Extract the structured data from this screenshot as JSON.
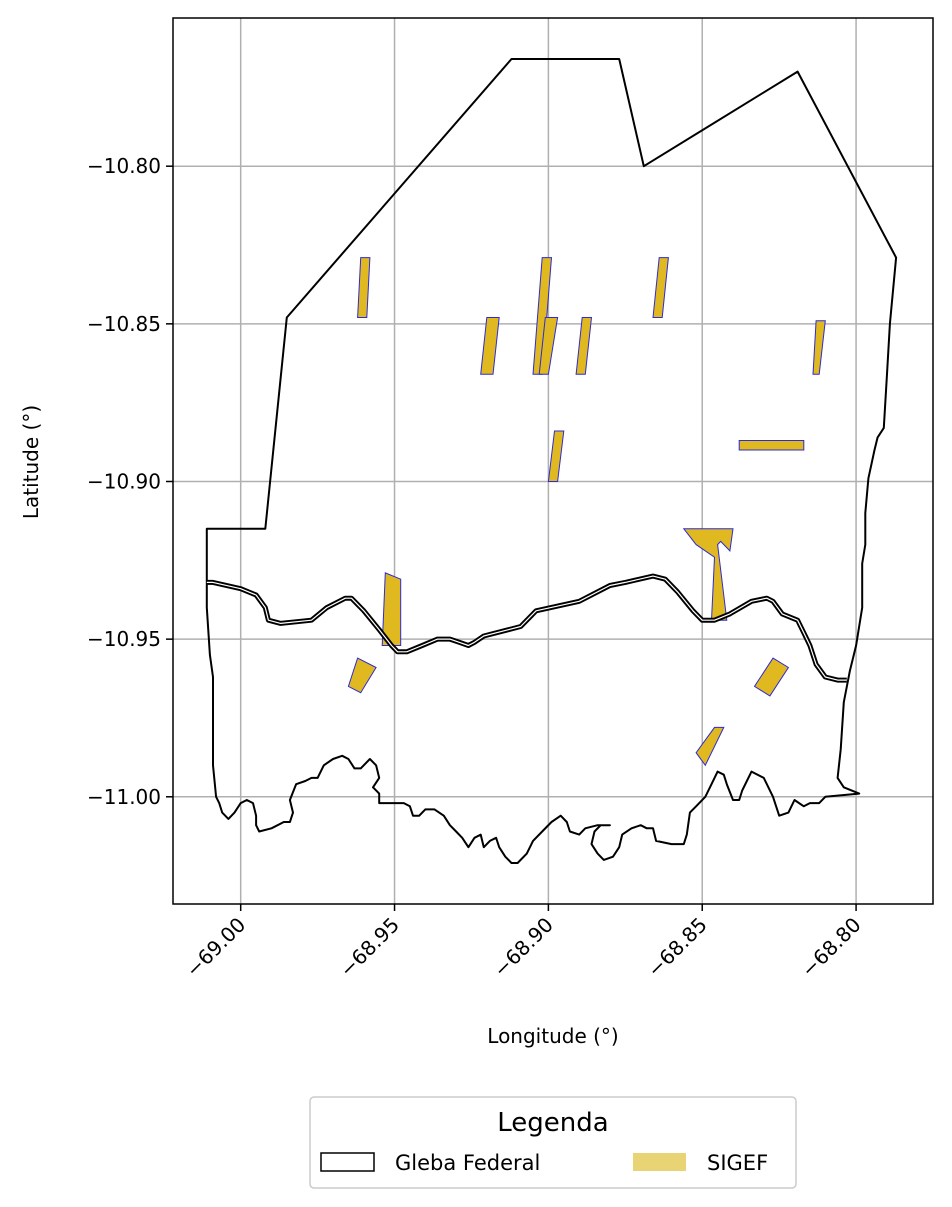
{
  "chart_data": {
    "type": "map",
    "xlabel": "Longitude (°)",
    "ylabel": "Latitude (°)",
    "xlim": [
      -69.022,
      -68.775
    ],
    "ylim": [
      -11.034,
      -10.753
    ],
    "grid": true,
    "x_ticks": [
      {
        "value": -69.0,
        "label": "−69.00"
      },
      {
        "value": -68.95,
        "label": "−68.95"
      },
      {
        "value": -68.9,
        "label": "−68.90"
      },
      {
        "value": -68.85,
        "label": "−68.85"
      },
      {
        "value": -68.8,
        "label": "−68.80"
      }
    ],
    "y_ticks": [
      {
        "value": -10.8,
        "label": "−10.80"
      },
      {
        "value": -10.85,
        "label": "−10.85"
      },
      {
        "value": -10.9,
        "label": "−10.90"
      },
      {
        "value": -10.95,
        "label": "−10.95"
      },
      {
        "value": -11.0,
        "label": "−11.00"
      }
    ],
    "legend": {
      "title": "Legenda",
      "placement": "bottom-center",
      "entries": [
        {
          "label": "Gleba Federal",
          "style": "outline",
          "color": "#000000"
        },
        {
          "label": "SIGEF",
          "style": "fill",
          "color": "#e8d474"
        }
      ]
    },
    "colors": {
      "gleba_stroke": "#000000",
      "sigef_fill": "#e0b820",
      "sigef_stroke": "#2b2bd9",
      "grid": "#b0b0b0"
    },
    "gleba_polygons": [
      {
        "name": "Gleba Federal",
        "coords": [
          [
            -69.011,
            -10.915
          ],
          [
            -68.992,
            -10.915
          ],
          [
            -68.985,
            -10.848
          ],
          [
            -68.912,
            -10.766
          ],
          [
            -68.877,
            -10.766
          ],
          [
            -68.869,
            -10.8
          ],
          [
            -68.819,
            -10.77
          ],
          [
            -68.787,
            -10.829
          ],
          [
            -68.789,
            -10.85
          ],
          [
            -68.79,
            -10.867
          ],
          [
            -68.791,
            -10.883
          ],
          [
            -68.793,
            -10.886
          ],
          [
            -68.794,
            -10.89
          ],
          [
            -68.796,
            -10.899
          ],
          [
            -68.797,
            -10.91
          ],
          [
            -68.797,
            -10.92
          ],
          [
            -68.798,
            -10.926
          ],
          [
            -68.798,
            -10.94
          ],
          [
            -68.8,
            -10.952
          ],
          [
            -68.802,
            -10.96
          ],
          [
            -68.804,
            -10.97
          ],
          [
            -68.805,
            -10.985
          ],
          [
            -68.806,
            -10.994
          ],
          [
            -68.804,
            -10.997
          ],
          [
            -68.799,
            -10.999
          ],
          [
            -68.81,
            -11.0
          ],
          [
            -68.812,
            -11.002
          ],
          [
            -68.815,
            -11.002
          ],
          [
            -68.817,
            -11.003
          ],
          [
            -68.82,
            -11.001
          ],
          [
            -68.822,
            -11.005
          ],
          [
            -68.825,
            -11.006
          ],
          [
            -68.827,
            -11.0
          ],
          [
            -68.83,
            -10.994
          ],
          [
            -68.834,
            -10.992
          ],
          [
            -68.837,
            -10.998
          ],
          [
            -68.838,
            -11.001
          ],
          [
            -68.84,
            -11.001
          ],
          [
            -68.842,
            -10.996
          ],
          [
            -68.843,
            -10.993
          ],
          [
            -68.845,
            -10.992
          ],
          [
            -68.847,
            -10.996
          ],
          [
            -68.849,
            -11.0
          ],
          [
            -68.852,
            -11.003
          ],
          [
            -68.854,
            -11.005
          ],
          [
            -68.855,
            -11.012
          ],
          [
            -68.856,
            -11.015
          ],
          [
            -68.86,
            -11.015
          ],
          [
            -68.865,
            -11.014
          ],
          [
            -68.866,
            -11.01
          ],
          [
            -68.868,
            -11.01
          ],
          [
            -68.87,
            -11.009
          ],
          [
            -68.873,
            -11.01
          ],
          [
            -68.876,
            -11.012
          ],
          [
            -68.877,
            -11.016
          ],
          [
            -68.879,
            -11.019
          ],
          [
            -68.882,
            -11.02
          ],
          [
            -68.884,
            -11.018
          ],
          [
            -68.886,
            -11.015
          ],
          [
            -68.885,
            -11.011
          ],
          [
            -68.883,
            -11.009
          ],
          [
            -68.88,
            -11.009
          ],
          [
            -68.884,
            -11.009
          ],
          [
            -68.888,
            -11.01
          ],
          [
            -68.89,
            -11.012
          ],
          [
            -68.893,
            -11.011
          ],
          [
            -68.894,
            -11.008
          ],
          [
            -68.896,
            -11.006
          ],
          [
            -68.899,
            -11.008
          ],
          [
            -68.902,
            -11.011
          ],
          [
            -68.905,
            -11.014
          ],
          [
            -68.907,
            -11.018
          ],
          [
            -68.91,
            -11.021
          ],
          [
            -68.912,
            -11.021
          ],
          [
            -68.914,
            -11.019
          ],
          [
            -68.916,
            -11.016
          ],
          [
            -68.917,
            -11.013
          ],
          [
            -68.919,
            -11.014
          ],
          [
            -68.921,
            -11.016
          ],
          [
            -68.922,
            -11.012
          ],
          [
            -68.924,
            -11.013
          ],
          [
            -68.926,
            -11.016
          ],
          [
            -68.928,
            -11.013
          ],
          [
            -68.93,
            -11.011
          ],
          [
            -68.932,
            -11.009
          ],
          [
            -68.934,
            -11.006
          ],
          [
            -68.937,
            -11.004
          ],
          [
            -68.94,
            -11.004
          ],
          [
            -68.942,
            -11.006
          ],
          [
            -68.944,
            -11.006
          ],
          [
            -68.945,
            -11.003
          ],
          [
            -68.947,
            -11.002
          ],
          [
            -68.95,
            -11.002
          ],
          [
            -68.953,
            -11.002
          ],
          [
            -68.955,
            -11.002
          ],
          [
            -68.955,
            -10.999
          ],
          [
            -68.957,
            -10.997
          ],
          [
            -68.955,
            -10.994
          ],
          [
            -68.956,
            -10.99
          ],
          [
            -68.958,
            -10.988
          ],
          [
            -68.961,
            -10.991
          ],
          [
            -68.963,
            -10.991
          ],
          [
            -68.965,
            -10.988
          ],
          [
            -68.967,
            -10.987
          ],
          [
            -68.97,
            -10.988
          ],
          [
            -68.973,
            -10.99
          ],
          [
            -68.975,
            -10.994
          ],
          [
            -68.977,
            -10.994
          ],
          [
            -68.979,
            -10.995
          ],
          [
            -68.982,
            -10.996
          ],
          [
            -68.984,
            -11.001
          ],
          [
            -68.983,
            -11.005
          ],
          [
            -68.984,
            -11.008
          ],
          [
            -68.986,
            -11.008
          ],
          [
            -68.99,
            -11.01
          ],
          [
            -68.994,
            -11.011
          ],
          [
            -68.995,
            -11.009
          ],
          [
            -68.995,
            -11.006
          ],
          [
            -68.996,
            -11.002
          ],
          [
            -68.998,
            -11.001
          ],
          [
            -69.0,
            -11.002
          ],
          [
            -69.002,
            -11.005
          ],
          [
            -69.004,
            -11.007
          ],
          [
            -69.006,
            -11.005
          ],
          [
            -69.007,
            -11.002
          ],
          [
            -69.008,
            -11.0
          ],
          [
            -69.009,
            -10.99
          ],
          [
            -69.009,
            -10.976
          ],
          [
            -69.009,
            -10.965
          ],
          [
            -69.009,
            -10.962
          ],
          [
            -69.01,
            -10.955
          ],
          [
            -69.011,
            -10.94
          ],
          [
            -69.011,
            -10.925
          ]
        ],
        "closed": true
      }
    ],
    "gleba_lines": [
      {
        "name": "Gleba Federal",
        "double": true,
        "coords": [
          [
            -69.011,
            -10.932
          ],
          [
            -69.009,
            -10.932
          ],
          [
            -69.0,
            -10.934
          ],
          [
            -68.995,
            -10.936
          ],
          [
            -68.992,
            -10.94
          ],
          [
            -68.991,
            -10.944
          ],
          [
            -68.987,
            -10.945
          ],
          [
            -68.977,
            -10.944
          ],
          [
            -68.972,
            -10.94
          ],
          [
            -68.966,
            -10.937
          ],
          [
            -68.964,
            -10.937
          ],
          [
            -68.96,
            -10.941
          ],
          [
            -68.955,
            -10.947
          ],
          [
            -68.951,
            -10.952
          ],
          [
            -68.949,
            -10.954
          ],
          [
            -68.946,
            -10.954
          ],
          [
            -68.941,
            -10.952
          ],
          [
            -68.936,
            -10.95
          ],
          [
            -68.932,
            -10.95
          ],
          [
            -68.929,
            -10.951
          ],
          [
            -68.926,
            -10.952
          ],
          [
            -68.924,
            -10.951
          ],
          [
            -68.921,
            -10.949
          ],
          [
            -68.913,
            -10.947
          ],
          [
            -68.909,
            -10.946
          ],
          [
            -68.906,
            -10.943
          ],
          [
            -68.904,
            -10.941
          ],
          [
            -68.89,
            -10.938
          ],
          [
            -68.88,
            -10.933
          ],
          [
            -68.875,
            -10.932
          ],
          [
            -68.866,
            -10.93
          ],
          [
            -68.862,
            -10.931
          ],
          [
            -68.858,
            -10.935
          ],
          [
            -68.853,
            -10.941
          ],
          [
            -68.85,
            -10.944
          ],
          [
            -68.846,
            -10.944
          ],
          [
            -68.841,
            -10.942
          ],
          [
            -68.834,
            -10.938
          ],
          [
            -68.829,
            -10.937
          ],
          [
            -68.827,
            -10.938
          ],
          [
            -68.824,
            -10.942
          ],
          [
            -68.819,
            -10.944
          ],
          [
            -68.817,
            -10.948
          ],
          [
            -68.815,
            -10.952
          ],
          [
            -68.813,
            -10.958
          ],
          [
            -68.81,
            -10.962
          ],
          [
            -68.806,
            -10.963
          ],
          [
            -68.803,
            -10.963
          ]
        ],
        "closed": false
      }
    ],
    "sigef_parcels": [
      [
        [
          -68.961,
          -10.829
        ],
        [
          -68.958,
          -10.829
        ],
        [
          -68.959,
          -10.848
        ],
        [
          -68.962,
          -10.848
        ]
      ],
      [
        [
          -68.902,
          -10.829
        ],
        [
          -68.899,
          -10.829
        ],
        [
          -68.902,
          -10.866
        ],
        [
          -68.905,
          -10.866
        ]
      ],
      [
        [
          -68.864,
          -10.829
        ],
        [
          -68.861,
          -10.829
        ],
        [
          -68.863,
          -10.848
        ],
        [
          -68.866,
          -10.848
        ]
      ],
      [
        [
          -68.92,
          -10.848
        ],
        [
          -68.916,
          -10.848
        ],
        [
          -68.918,
          -10.866
        ],
        [
          -68.922,
          -10.866
        ]
      ],
      [
        [
          -68.901,
          -10.848
        ],
        [
          -68.897,
          -10.848
        ],
        [
          -68.9,
          -10.866
        ],
        [
          -68.903,
          -10.866
        ]
      ],
      [
        [
          -68.889,
          -10.848
        ],
        [
          -68.886,
          -10.848
        ],
        [
          -68.888,
          -10.866
        ],
        [
          -68.891,
          -10.866
        ]
      ],
      [
        [
          -68.813,
          -10.849
        ],
        [
          -68.81,
          -10.849
        ],
        [
          -68.812,
          -10.866
        ],
        [
          -68.814,
          -10.866
        ]
      ],
      [
        [
          -68.898,
          -10.884
        ],
        [
          -68.895,
          -10.884
        ],
        [
          -68.897,
          -10.9
        ],
        [
          -68.9,
          -10.9
        ]
      ],
      [
        [
          -68.838,
          -10.887
        ],
        [
          -68.817,
          -10.887
        ],
        [
          -68.817,
          -10.89
        ],
        [
          -68.838,
          -10.89
        ]
      ],
      [
        [
          -68.856,
          -10.915
        ],
        [
          -68.84,
          -10.915
        ],
        [
          -68.841,
          -10.922
        ],
        [
          -68.844,
          -10.919
        ],
        [
          -68.845,
          -10.92
        ],
        [
          -68.842,
          -10.944
        ],
        [
          -68.847,
          -10.944
        ],
        [
          -68.846,
          -10.924
        ],
        [
          -68.852,
          -10.92
        ],
        [
          -68.856,
          -10.915
        ]
      ],
      [
        [
          -68.953,
          -10.929
        ],
        [
          -68.948,
          -10.931
        ],
        [
          -68.948,
          -10.952
        ],
        [
          -68.954,
          -10.952
        ]
      ],
      [
        [
          -68.962,
          -10.956
        ],
        [
          -68.956,
          -10.959
        ],
        [
          -68.961,
          -10.967
        ],
        [
          -68.965,
          -10.965
        ]
      ],
      [
        [
          -68.827,
          -10.956
        ],
        [
          -68.822,
          -10.959
        ],
        [
          -68.828,
          -10.968
        ],
        [
          -68.833,
          -10.965
        ]
      ],
      [
        [
          -68.846,
          -10.978
        ],
        [
          -68.843,
          -10.978
        ],
        [
          -68.849,
          -10.99
        ],
        [
          -68.852,
          -10.986
        ]
      ]
    ]
  }
}
